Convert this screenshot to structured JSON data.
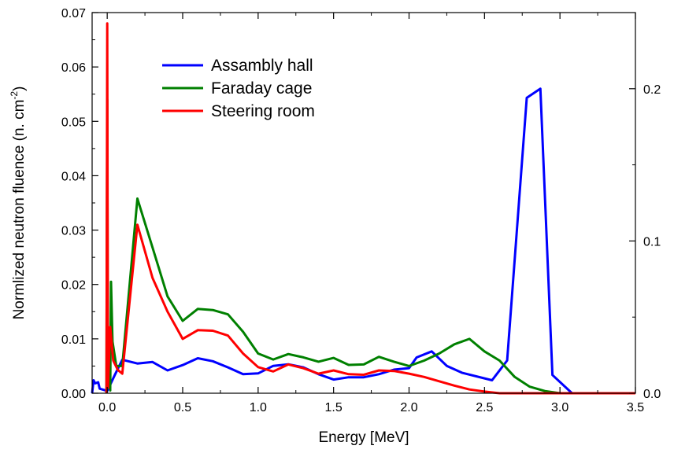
{
  "chart_data": {
    "type": "line",
    "xlabel": "Energy [MeV]",
    "ylabel": "Normlized neutron fluence (n. cm",
    "ylabel_sup": "-2",
    "ylabel_close": ")",
    "xlim": [
      -0.1,
      3.5
    ],
    "ylim": [
      0,
      0.07
    ],
    "y2lim": [
      0,
      0.25
    ],
    "x_ticks": [
      0.0,
      0.5,
      1.0,
      1.5,
      2.0,
      2.5,
      3.0,
      3.5
    ],
    "x_tick_labels": [
      "0.0",
      "0.5",
      "1.0",
      "1.5",
      "2.0",
      "2.5",
      "3.0",
      "3.5"
    ],
    "y_ticks": [
      0,
      0.01,
      0.02,
      0.03,
      0.04,
      0.05,
      0.06,
      0.07
    ],
    "y_tick_labels": [
      "0.00",
      "0.01",
      "0.02",
      "0.03",
      "0.04",
      "0.05",
      "0.06",
      "0.07"
    ],
    "y2_ticks": [
      0,
      0.1,
      0.2
    ],
    "y2_tick_labels": [
      "0.0",
      "0.1",
      "0.2"
    ],
    "grid": false,
    "legend_position": "top-left",
    "series": [
      {
        "name": "Assambly hall",
        "color": "#0000ff",
        "axis": "right",
        "points": [
          [
            -0.1,
            0.0
          ],
          [
            -0.09,
            0.0085
          ],
          [
            -0.08,
            0.0065
          ],
          [
            -0.06,
            0.0072
          ],
          [
            -0.05,
            0.003
          ],
          [
            0.0,
            0.0015
          ],
          [
            0.05,
            0.012
          ],
          [
            0.1,
            0.022
          ],
          [
            0.2,
            0.0195
          ],
          [
            0.3,
            0.0205
          ],
          [
            0.4,
            0.015
          ],
          [
            0.5,
            0.0185
          ],
          [
            0.6,
            0.023
          ],
          [
            0.7,
            0.021
          ],
          [
            0.8,
            0.017
          ],
          [
            0.9,
            0.0125
          ],
          [
            1.0,
            0.013
          ],
          [
            1.1,
            0.018
          ],
          [
            1.2,
            0.019
          ],
          [
            1.3,
            0.017
          ],
          [
            1.4,
            0.0125
          ],
          [
            1.5,
            0.009
          ],
          [
            1.6,
            0.0105
          ],
          [
            1.7,
            0.0105
          ],
          [
            1.8,
            0.0125
          ],
          [
            1.9,
            0.0155
          ],
          [
            2.0,
            0.0165
          ],
          [
            2.05,
            0.0235
          ],
          [
            2.15,
            0.0275
          ],
          [
            2.25,
            0.018
          ],
          [
            2.35,
            0.0135
          ],
          [
            2.55,
            0.0085
          ],
          [
            2.65,
            0.0215
          ],
          [
            2.78,
            0.194
          ],
          [
            2.87,
            0.2
          ],
          [
            2.95,
            0.012
          ],
          [
            3.08,
            0.0
          ],
          [
            3.5,
            0.0
          ]
        ]
      },
      {
        "name": "Faraday cage",
        "color": "#008000",
        "axis": "left",
        "points": [
          [
            -0.005,
            0.0
          ],
          [
            0.0,
            0.054
          ],
          [
            0.005,
            0.001
          ],
          [
            0.01,
            0.0095
          ],
          [
            0.02,
            0.0005
          ],
          [
            0.025,
            0.0205
          ],
          [
            0.035,
            0.0095
          ],
          [
            0.06,
            0.005
          ],
          [
            0.1,
            0.005
          ],
          [
            0.2,
            0.0358
          ],
          [
            0.3,
            0.0268
          ],
          [
            0.4,
            0.0178
          ],
          [
            0.5,
            0.0133
          ],
          [
            0.6,
            0.0155
          ],
          [
            0.7,
            0.0153
          ],
          [
            0.8,
            0.0145
          ],
          [
            0.9,
            0.0113
          ],
          [
            1.0,
            0.0073
          ],
          [
            1.1,
            0.0062
          ],
          [
            1.2,
            0.0072
          ],
          [
            1.3,
            0.0066
          ],
          [
            1.4,
            0.0058
          ],
          [
            1.5,
            0.0065
          ],
          [
            1.6,
            0.0052
          ],
          [
            1.7,
            0.0053
          ],
          [
            1.8,
            0.0067
          ],
          [
            1.9,
            0.0058
          ],
          [
            2.0,
            0.005
          ],
          [
            2.1,
            0.006
          ],
          [
            2.2,
            0.0073
          ],
          [
            2.3,
            0.009
          ],
          [
            2.4,
            0.01
          ],
          [
            2.5,
            0.0077
          ],
          [
            2.6,
            0.006
          ],
          [
            2.7,
            0.003
          ],
          [
            2.8,
            0.0012
          ],
          [
            2.9,
            0.0004
          ],
          [
            3.0,
            0.0
          ],
          [
            3.5,
            0.0
          ]
        ]
      },
      {
        "name": "Steering room",
        "color": "#ff0000",
        "axis": "left",
        "points": [
          [
            -0.005,
            0.0
          ],
          [
            0.0,
            0.068
          ],
          [
            0.005,
            0.001
          ],
          [
            0.02,
            0.0122
          ],
          [
            0.04,
            0.006
          ],
          [
            0.07,
            0.0043
          ],
          [
            0.1,
            0.0036
          ],
          [
            0.2,
            0.031
          ],
          [
            0.3,
            0.0212
          ],
          [
            0.4,
            0.015
          ],
          [
            0.5,
            0.01
          ],
          [
            0.6,
            0.0116
          ],
          [
            0.7,
            0.0115
          ],
          [
            0.8,
            0.0106
          ],
          [
            0.9,
            0.0073
          ],
          [
            1.0,
            0.0048
          ],
          [
            1.1,
            0.004
          ],
          [
            1.2,
            0.0053
          ],
          [
            1.3,
            0.0046
          ],
          [
            1.4,
            0.0036
          ],
          [
            1.5,
            0.0042
          ],
          [
            1.6,
            0.0035
          ],
          [
            1.7,
            0.0034
          ],
          [
            1.8,
            0.0042
          ],
          [
            1.9,
            0.0041
          ],
          [
            2.0,
            0.0036
          ],
          [
            2.1,
            0.003
          ],
          [
            2.2,
            0.0022
          ],
          [
            2.3,
            0.0014
          ],
          [
            2.4,
            0.0007
          ],
          [
            2.5,
            0.0003
          ],
          [
            2.6,
            0.0
          ],
          [
            3.5,
            0.0
          ]
        ]
      }
    ]
  }
}
